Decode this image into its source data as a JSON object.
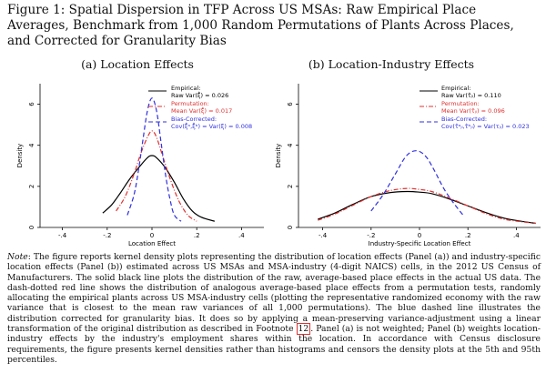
{
  "figure": {
    "title": "Figure 1:  Spatial Dispersion in TFP Across US MSAs: Raw Empirical Place Averages, Benchmark from 1,000 Random Permutations of Plants Across Places, and Corrected for Granularity Bias"
  },
  "note": {
    "label": "Note",
    "text_before_ref": ": The figure reports kernel density plots representing the distribution of location effects (Panel (a)) and industry-specific location effects (Panel (b)) estimated across US MSAs and MSA-industry (4-digit NAICS) cells, in the 2012 US Census of Manufacturers. The solid black line plots the distribution of the raw, average-based place effects in the actual US data. The dash-dotted red line shows the distribution of analogous average-based place effects from a permutation tests, randomly allocating the empirical plants across US MSA-industry cells (plotting the representative randomized economy with the raw variance that is closest to the mean raw variances of all 1,000 permutations). The blue dashed line illustrates the distribution corrected for granularity bias. It does so by applying a mean-preserving variance-adjustment using a linear transformation of the original distribution as described in Footnote ",
    "footnote_ref": "12",
    "text_after_ref": ". Panel (a) is not weighted; Panel (b) weights location-industry effects by the industry's employment shares within the location. In accordance with Census disclosure requirements, the figure presents kernel densities rather than histograms and censors the density plots at the 5th and 95th percentiles."
  },
  "chart_data": [
    {
      "type": "line",
      "panel_title": "(a) Location Effects",
      "xlabel": "Location Effect",
      "ylabel": "Density",
      "xlim": [
        -0.5,
        0.5
      ],
      "ylim": [
        0,
        7
      ],
      "xticks": [
        -0.4,
        -0.2,
        0,
        0.2,
        0.4
      ],
      "xtick_labels": [
        "-.4",
        "-.2",
        "0",
        ".2",
        ".4"
      ],
      "yticks": [
        0,
        2,
        4,
        6
      ],
      "ytick_labels": [
        "0",
        "2",
        "4",
        "6"
      ],
      "legend_position": "top-right",
      "series": [
        {
          "name": "Empirical:",
          "label_line2": "Raw Var(ξ̂) = 0.026",
          "color": "#000000",
          "style": "solid",
          "x": [
            -0.22,
            -0.18,
            -0.14,
            -0.1,
            -0.06,
            -0.02,
            0.0,
            0.02,
            0.06,
            0.1,
            0.14,
            0.18,
            0.22,
            0.28
          ],
          "y": [
            0.7,
            1.1,
            1.7,
            2.35,
            2.9,
            3.4,
            3.5,
            3.4,
            2.9,
            2.2,
            1.4,
            0.8,
            0.5,
            0.3
          ]
        },
        {
          "name": "Permutation:",
          "label_line2": "Mean Var(ξ̂) = 0.017",
          "color": "#e03030",
          "style": "dashdot",
          "x": [
            -0.16,
            -0.12,
            -0.08,
            -0.05,
            -0.02,
            0.0,
            0.02,
            0.05,
            0.08,
            0.12,
            0.16,
            0.2
          ],
          "y": [
            0.8,
            1.5,
            2.6,
            3.6,
            4.4,
            4.7,
            4.4,
            3.4,
            2.4,
            1.3,
            0.6,
            0.3
          ]
        },
        {
          "name": "Bias-Corrected:",
          "label_line2": "Cov(ξ̂ᵃ,ξ̂ᵇ) = Var(ξ) = 0.008",
          "color": "#3030e0",
          "style": "dashed",
          "x": [
            -0.11,
            -0.08,
            -0.06,
            -0.04,
            -0.02,
            0.0,
            0.02,
            0.04,
            0.06,
            0.08,
            0.1,
            0.13
          ],
          "y": [
            0.6,
            1.6,
            2.8,
            4.3,
            5.7,
            6.3,
            5.7,
            4.2,
            2.6,
            1.4,
            0.6,
            0.3
          ]
        }
      ]
    },
    {
      "type": "line",
      "panel_title": "(b) Location-Industry Effects",
      "xlabel": "Industry-Specific Location Effect",
      "ylabel": "Density",
      "xlim": [
        -0.5,
        0.5
      ],
      "ylim": [
        0,
        7
      ],
      "xticks": [
        -0.4,
        -0.2,
        0,
        0.2,
        0.4
      ],
      "xtick_labels": [
        "-.4",
        "-.2",
        "0",
        ".2",
        ".4"
      ],
      "yticks": [
        0,
        2,
        4,
        6
      ],
      "ytick_labels": [
        "0",
        "2",
        "4",
        "6"
      ],
      "legend_position": "top-right",
      "series": [
        {
          "name": "Empirical:",
          "label_line2": "Raw Var(τ̂ⱼₗ) = 0.110",
          "color": "#000000",
          "style": "solid",
          "x": [
            -0.42,
            -0.35,
            -0.28,
            -0.2,
            -0.12,
            -0.05,
            0.0,
            0.05,
            0.12,
            0.2,
            0.28,
            0.35,
            0.42,
            0.48
          ],
          "y": [
            0.4,
            0.7,
            1.1,
            1.5,
            1.7,
            1.75,
            1.72,
            1.65,
            1.4,
            1.05,
            0.7,
            0.45,
            0.3,
            0.2
          ]
        },
        {
          "name": "Permutation:",
          "label_line2": "Mean Var(τ̂ⱼₗ) = 0.096",
          "color": "#e03030",
          "style": "dashdot",
          "x": [
            -0.42,
            -0.35,
            -0.28,
            -0.2,
            -0.12,
            -0.05,
            0.0,
            0.05,
            0.12,
            0.2,
            0.28,
            0.35,
            0.42,
            0.48
          ],
          "y": [
            0.35,
            0.65,
            1.05,
            1.5,
            1.8,
            1.9,
            1.85,
            1.75,
            1.45,
            1.05,
            0.65,
            0.4,
            0.28,
            0.2
          ]
        },
        {
          "name": "Bias-Corrected:",
          "label_line2": "Cov(τ̂ᵃⱼₗ,τ̂ᵇⱼₗ) = Var(τⱼₗ) = 0.023",
          "color": "#3030e0",
          "style": "dashed",
          "x": [
            -0.2,
            -0.15,
            -0.1,
            -0.06,
            -0.03,
            0.0,
            0.03,
            0.06,
            0.1,
            0.14,
            0.18
          ],
          "y": [
            0.8,
            1.6,
            2.6,
            3.4,
            3.7,
            3.7,
            3.4,
            2.8,
            1.9,
            1.2,
            0.6
          ]
        }
      ]
    }
  ]
}
